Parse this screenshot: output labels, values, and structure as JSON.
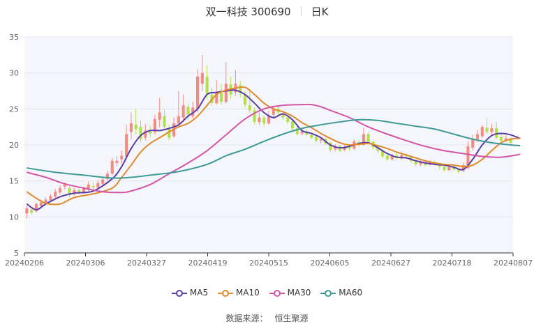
{
  "header": {
    "name": "双一科技 300690",
    "period": "日K"
  },
  "source": {
    "label": "数据来源：",
    "value": "恒生聚源"
  },
  "colors": {
    "up": "#f28b82",
    "down": "#b2e04a",
    "MA5": "#5b3ca8",
    "MA10": "#e08a2b",
    "MA30": "#d455a6",
    "MA60": "#3d9a96"
  },
  "chart_data": {
    "type": "candlestick",
    "ylim": [
      5,
      35
    ],
    "yticks": [
      5,
      10,
      15,
      20,
      25,
      30,
      35
    ],
    "x_tick_labels": [
      "20240206",
      "20240306",
      "20240327",
      "20240419",
      "20240515",
      "20240605",
      "20240627",
      "20240718",
      "20240807"
    ],
    "candles": [
      [
        10.5,
        11.2,
        9.8,
        11.5
      ],
      [
        11.0,
        10.6,
        10.3,
        11.3
      ],
      [
        10.8,
        11.8,
        10.6,
        12.0
      ],
      [
        11.5,
        12.0,
        11.3,
        12.4
      ],
      [
        12.0,
        12.4,
        11.8,
        12.7
      ],
      [
        12.3,
        12.9,
        12.1,
        13.2
      ],
      [
        12.8,
        13.5,
        12.6,
        13.9
      ],
      [
        13.4,
        14.0,
        13.1,
        14.4
      ],
      [
        14.2,
        14.5,
        13.8,
        14.8
      ],
      [
        14.0,
        13.0,
        12.7,
        14.3
      ],
      [
        13.2,
        13.7,
        13.0,
        14.0
      ],
      [
        13.7,
        13.4,
        13.1,
        14.0
      ],
      [
        13.4,
        13.9,
        13.2,
        14.2
      ],
      [
        13.8,
        14.5,
        13.6,
        14.9
      ],
      [
        14.3,
        14.1,
        13.8,
        14.8
      ],
      [
        14.1,
        14.7,
        13.9,
        15.1
      ],
      [
        14.6,
        15.2,
        14.4,
        15.6
      ],
      [
        15.3,
        16.0,
        15.1,
        16.4
      ],
      [
        16.0,
        17.8,
        15.8,
        18.2
      ],
      [
        17.5,
        17.8,
        17.0,
        18.4
      ],
      [
        18.0,
        18.5,
        17.4,
        19.2
      ],
      [
        18.4,
        21.5,
        18.2,
        22.8
      ],
      [
        21.8,
        23.0,
        20.8,
        24.5
      ],
      [
        22.8,
        22.2,
        21.5,
        25.0
      ],
      [
        22.5,
        20.8,
        20.3,
        23.4
      ],
      [
        21.0,
        22.0,
        20.6,
        22.9
      ],
      [
        22.0,
        21.6,
        21.0,
        22.7
      ],
      [
        21.8,
        23.6,
        21.4,
        24.2
      ],
      [
        23.5,
        24.5,
        22.5,
        26.5
      ],
      [
        24.0,
        22.5,
        22.0,
        24.9
      ],
      [
        22.2,
        21.0,
        20.6,
        22.8
      ],
      [
        21.2,
        23.0,
        21.0,
        23.8
      ],
      [
        23.0,
        24.0,
        22.6,
        27.5
      ],
      [
        23.8,
        25.5,
        23.2,
        27.0
      ],
      [
        25.3,
        24.2,
        23.4,
        25.8
      ],
      [
        24.0,
        25.2,
        23.7,
        26.0
      ],
      [
        25.0,
        29.5,
        24.6,
        30.5
      ],
      [
        28.5,
        30.0,
        27.5,
        32.5
      ],
      [
        29.5,
        27.0,
        26.3,
        31.0
      ],
      [
        27.0,
        25.8,
        25.4,
        28.0
      ],
      [
        25.8,
        27.3,
        25.6,
        29.0
      ],
      [
        27.2,
        26.0,
        25.6,
        28.5
      ],
      [
        26.0,
        28.5,
        25.8,
        31.5
      ],
      [
        28.4,
        27.0,
        26.4,
        29.5
      ],
      [
        27.3,
        28.5,
        26.8,
        30.4
      ],
      [
        28.3,
        27.2,
        26.6,
        28.9
      ],
      [
        27.0,
        25.6,
        25.2,
        27.5
      ],
      [
        25.5,
        24.8,
        24.4,
        27.8
      ],
      [
        24.8,
        23.2,
        22.8,
        25.2
      ],
      [
        23.2,
        23.8,
        22.8,
        24.5
      ],
      [
        23.8,
        23.0,
        22.6,
        24.0
      ],
      [
        23.0,
        24.0,
        22.8,
        24.8
      ],
      [
        24.2,
        25.0,
        23.6,
        25.3
      ],
      [
        25.0,
        24.5,
        24.0,
        25.4
      ],
      [
        24.4,
        23.8,
        23.5,
        24.8
      ],
      [
        23.8,
        23.2,
        22.9,
        24.1
      ],
      [
        23.3,
        22.3,
        22.0,
        23.6
      ],
      [
        22.3,
        21.5,
        21.3,
        22.6
      ],
      [
        21.6,
        21.9,
        21.3,
        22.3
      ],
      [
        21.9,
        21.4,
        21.2,
        22.2
      ],
      [
        21.4,
        21.0,
        20.8,
        21.7
      ],
      [
        21.1,
        20.6,
        20.3,
        21.3
      ],
      [
        20.6,
        20.8,
        20.2,
        21.1
      ],
      [
        20.8,
        20.2,
        20.0,
        21.0
      ],
      [
        20.3,
        19.3,
        19.0,
        20.5
      ],
      [
        19.4,
        19.8,
        19.1,
        20.1
      ],
      [
        19.8,
        19.2,
        19.0,
        20.0
      ],
      [
        19.3,
        19.7,
        19.1,
        20.0
      ],
      [
        19.7,
        19.5,
        19.2,
        20.1
      ],
      [
        19.5,
        20.5,
        19.3,
        20.8
      ],
      [
        20.4,
        20.0,
        19.7,
        20.7
      ],
      [
        20.0,
        21.5,
        19.9,
        22.4
      ],
      [
        21.5,
        20.5,
        20.2,
        21.8
      ],
      [
        20.4,
        19.7,
        19.4,
        20.6
      ],
      [
        19.8,
        19.2,
        18.9,
        19.9
      ],
      [
        19.2,
        18.4,
        18.2,
        19.4
      ],
      [
        18.5,
        18.0,
        17.8,
        18.7
      ],
      [
        18.0,
        18.5,
        17.8,
        18.8
      ],
      [
        18.5,
        18.2,
        18.0,
        18.9
      ],
      [
        18.1,
        18.6,
        17.9,
        19.0
      ],
      [
        18.6,
        18.4,
        18.2,
        18.8
      ],
      [
        18.3,
        17.8,
        17.5,
        18.5
      ],
      [
        17.8,
        17.3,
        17.0,
        18.0
      ],
      [
        17.3,
        17.7,
        17.1,
        18.0
      ],
      [
        17.6,
        17.2,
        17.0,
        17.8
      ],
      [
        17.3,
        17.6,
        17.1,
        17.9
      ],
      [
        17.6,
        17.4,
        17.2,
        17.8
      ],
      [
        17.4,
        17.0,
        16.6,
        17.5
      ],
      [
        17.0,
        16.5,
        16.3,
        17.2
      ],
      [
        16.5,
        16.9,
        16.4,
        17.2
      ],
      [
        16.9,
        16.6,
        16.4,
        17.1
      ],
      [
        16.5,
        16.3,
        16.0,
        16.7
      ],
      [
        16.4,
        17.2,
        16.2,
        17.5
      ],
      [
        16.8,
        19.8,
        16.6,
        20.5
      ],
      [
        19.6,
        20.8,
        19.2,
        21.4
      ],
      [
        20.8,
        21.5,
        20.4,
        22.1
      ],
      [
        21.2,
        22.5,
        21.0,
        22.8
      ],
      [
        22.4,
        21.8,
        21.5,
        23.8
      ],
      [
        21.8,
        22.3,
        21.4,
        22.9
      ],
      [
        22.3,
        21.0,
        20.8,
        23.2
      ],
      [
        21.1,
        20.6,
        20.4,
        21.4
      ],
      [
        20.6,
        20.9,
        20.5,
        21.3
      ],
      [
        20.9,
        20.3,
        20.1,
        21.1
      ]
    ],
    "series": [
      {
        "name": "MA5",
        "points": [
          [
            0,
            11.8
          ],
          [
            2,
            11.0
          ],
          [
            4,
            11.8
          ],
          [
            7,
            12.8
          ],
          [
            10,
            13.3
          ],
          [
            14,
            13.6
          ],
          [
            18,
            15.3
          ],
          [
            20,
            17.0
          ],
          [
            22,
            19.5
          ],
          [
            24,
            21.3
          ],
          [
            26,
            22.0
          ],
          [
            28,
            22.0
          ],
          [
            30,
            22.3
          ],
          [
            32,
            22.8
          ],
          [
            34,
            24.0
          ],
          [
            36,
            25.0
          ],
          [
            38,
            27.0
          ],
          [
            40,
            27.3
          ],
          [
            42,
            27.5
          ],
          [
            44,
            27.6
          ],
          [
            46,
            27.0
          ],
          [
            48,
            25.8
          ],
          [
            50,
            24.5
          ],
          [
            52,
            23.8
          ],
          [
            54,
            24.3
          ],
          [
            56,
            23.5
          ],
          [
            58,
            22.0
          ],
          [
            60,
            21.6
          ],
          [
            62,
            21.0
          ],
          [
            64,
            20.0
          ],
          [
            66,
            19.6
          ],
          [
            68,
            19.8
          ],
          [
            70,
            20.2
          ],
          [
            72,
            20.3
          ],
          [
            74,
            19.6
          ],
          [
            76,
            18.8
          ],
          [
            78,
            18.3
          ],
          [
            80,
            18.2
          ],
          [
            82,
            17.8
          ],
          [
            84,
            17.5
          ],
          [
            86,
            17.3
          ],
          [
            88,
            17.2
          ],
          [
            90,
            16.9
          ],
          [
            92,
            16.6
          ],
          [
            94,
            18.0
          ],
          [
            96,
            20.0
          ],
          [
            98,
            21.3
          ],
          [
            100,
            21.6
          ],
          [
            102,
            21.4
          ],
          [
            104,
            20.9
          ]
        ]
      },
      {
        "name": "MA10",
        "points": [
          [
            0,
            13.5
          ],
          [
            2,
            12.6
          ],
          [
            4,
            11.9
          ],
          [
            7,
            11.8
          ],
          [
            10,
            12.7
          ],
          [
            14,
            13.2
          ],
          [
            18,
            14.0
          ],
          [
            20,
            15.5
          ],
          [
            22,
            17.2
          ],
          [
            24,
            19.0
          ],
          [
            26,
            20.2
          ],
          [
            28,
            21.0
          ],
          [
            30,
            21.8
          ],
          [
            32,
            22.5
          ],
          [
            34,
            23.0
          ],
          [
            36,
            24.0
          ],
          [
            38,
            25.5
          ],
          [
            40,
            27.0
          ],
          [
            42,
            27.6
          ],
          [
            44,
            27.9
          ],
          [
            46,
            28.0
          ],
          [
            48,
            27.0
          ],
          [
            50,
            25.8
          ],
          [
            52,
            25.0
          ],
          [
            54,
            24.6
          ],
          [
            56,
            24.0
          ],
          [
            58,
            23.1
          ],
          [
            60,
            22.4
          ],
          [
            62,
            21.6
          ],
          [
            64,
            20.9
          ],
          [
            66,
            20.3
          ],
          [
            68,
            20.0
          ],
          [
            70,
            20.1
          ],
          [
            72,
            20.2
          ],
          [
            74,
            19.9
          ],
          [
            76,
            19.5
          ],
          [
            78,
            19.0
          ],
          [
            80,
            18.6
          ],
          [
            82,
            18.2
          ],
          [
            84,
            17.8
          ],
          [
            86,
            17.5
          ],
          [
            88,
            17.3
          ],
          [
            90,
            17.2
          ],
          [
            92,
            17.0
          ],
          [
            94,
            17.2
          ],
          [
            96,
            18.0
          ],
          [
            98,
            19.2
          ],
          [
            100,
            20.3
          ],
          [
            102,
            20.8
          ],
          [
            104,
            20.9
          ]
        ]
      },
      {
        "name": "MA30",
        "points": [
          [
            0,
            16.2
          ],
          [
            4,
            15.5
          ],
          [
            8,
            14.6
          ],
          [
            12,
            14.0
          ],
          [
            16,
            13.5
          ],
          [
            20,
            13.4
          ],
          [
            22,
            13.6
          ],
          [
            26,
            14.5
          ],
          [
            30,
            16.0
          ],
          [
            34,
            17.5
          ],
          [
            38,
            19.2
          ],
          [
            42,
            21.4
          ],
          [
            46,
            23.6
          ],
          [
            50,
            25.0
          ],
          [
            54,
            25.5
          ],
          [
            58,
            25.6
          ],
          [
            60,
            25.6
          ],
          [
            62,
            25.3
          ],
          [
            64,
            24.8
          ],
          [
            68,
            23.8
          ],
          [
            72,
            22.5
          ],
          [
            76,
            21.5
          ],
          [
            80,
            20.6
          ],
          [
            84,
            19.8
          ],
          [
            88,
            19.2
          ],
          [
            92,
            18.8
          ],
          [
            96,
            18.4
          ],
          [
            100,
            18.3
          ],
          [
            104,
            18.7
          ]
        ]
      },
      {
        "name": "MA60",
        "points": [
          [
            0,
            16.8
          ],
          [
            6,
            16.2
          ],
          [
            12,
            15.8
          ],
          [
            18,
            15.4
          ],
          [
            22,
            15.5
          ],
          [
            26,
            15.8
          ],
          [
            32,
            16.3
          ],
          [
            38,
            17.3
          ],
          [
            42,
            18.5
          ],
          [
            46,
            19.4
          ],
          [
            50,
            20.5
          ],
          [
            54,
            21.5
          ],
          [
            58,
            22.3
          ],
          [
            62,
            22.8
          ],
          [
            66,
            23.2
          ],
          [
            70,
            23.5
          ],
          [
            74,
            23.4
          ],
          [
            78,
            23.0
          ],
          [
            82,
            22.6
          ],
          [
            86,
            22.2
          ],
          [
            90,
            21.5
          ],
          [
            94,
            20.8
          ],
          [
            98,
            20.3
          ],
          [
            102,
            20.0
          ],
          [
            104,
            19.9
          ]
        ]
      }
    ]
  }
}
